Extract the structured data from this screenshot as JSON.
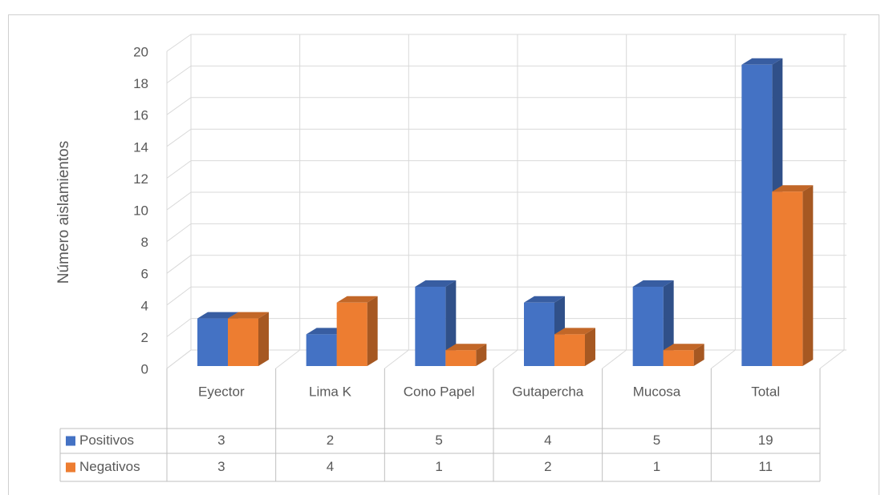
{
  "chart_data": {
    "type": "bar3d",
    "y_label": "Número aislamientos",
    "categories": [
      "Eyector",
      "Lima K",
      "Cono Papel",
      "Gutapercha",
      "Mucosa",
      "Total"
    ],
    "series": [
      {
        "name": "Positivos",
        "color": "#4472c4",
        "values": [
          3,
          2,
          5,
          4,
          5,
          19
        ]
      },
      {
        "name": "Negativos",
        "color": "#ed7d31",
        "values": [
          3,
          4,
          1,
          2,
          1,
          11
        ]
      }
    ],
    "ylim": [
      0,
      20
    ],
    "yticks": [
      0,
      2,
      4,
      6,
      8,
      10,
      12,
      14,
      16,
      18,
      20
    ],
    "grid": true
  }
}
